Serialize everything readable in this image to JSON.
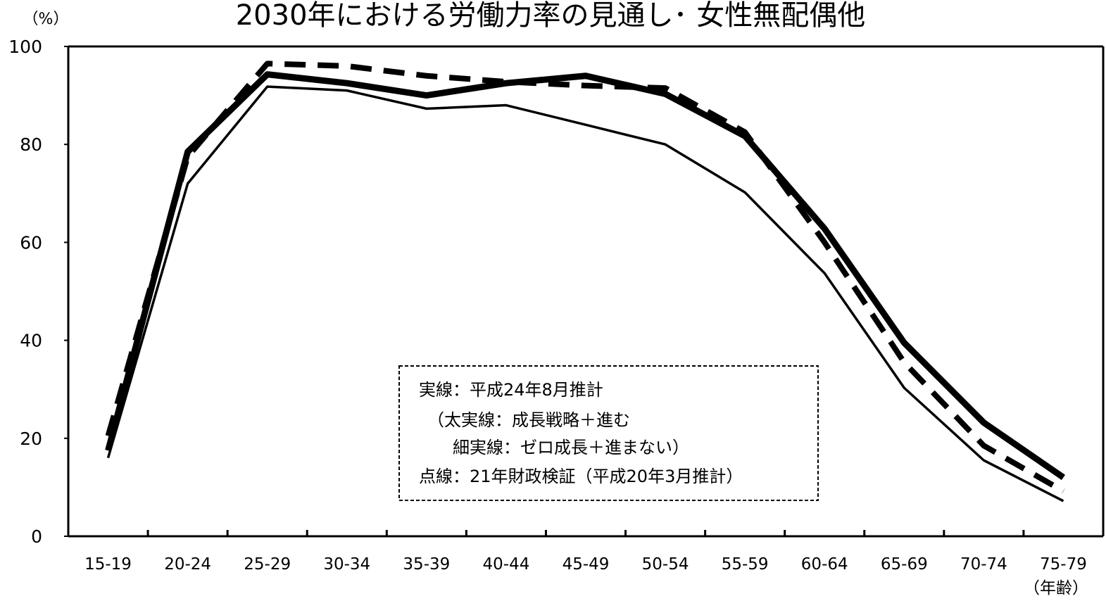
{
  "chart_data": {
    "type": "line",
    "title": "2030年における労働力率の見通し･ 女性無配偶他",
    "ylabel": "（%）",
    "xlabel": "（年齢）",
    "ylim": [
      0,
      100
    ],
    "yticks": [
      0,
      20,
      40,
      60,
      80,
      100
    ],
    "categories": [
      "15-19",
      "20-24",
      "25-29",
      "30-34",
      "35-39",
      "40-44",
      "45-49",
      "50-54",
      "55-59",
      "60-64",
      "65-69",
      "70-74",
      "75-79"
    ],
    "series": [
      {
        "style": "thick-solid",
        "values": [
          17.5,
          78.5,
          94.3,
          92.5,
          90,
          92.5,
          94,
          90.3,
          81.7,
          62.8,
          39.5,
          23.2,
          12
        ]
      },
      {
        "style": "thin-solid",
        "values": [
          16,
          72,
          91.8,
          91,
          87.3,
          88,
          84,
          80,
          70.2,
          53.7,
          30.3,
          15.5,
          7.2
        ]
      },
      {
        "style": "dashed",
        "values": [
          20.5,
          77.5,
          96.5,
          96,
          94,
          92.8,
          92,
          91.5,
          82.5,
          60,
          35.5,
          18.5,
          9.2
        ]
      }
    ],
    "legend": {
      "position": "center-bottom",
      "lines": [
        "実線：平成24年8月推計",
        "　（太実線：成長戦略＋進む",
        "　　細実線：ゼロ成長＋進まない）",
        "点線：21年財政検証（平成20年3月推計）"
      ]
    },
    "grid": false
  }
}
